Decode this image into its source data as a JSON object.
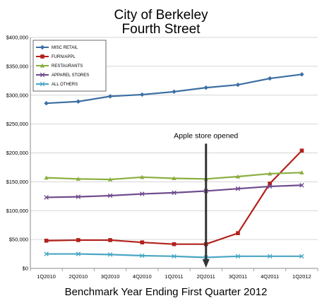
{
  "chart_data": {
    "type": "line",
    "title": "City of Berkeley",
    "subtitle": "Fourth Street",
    "xlabel": "Benchmark Year Ending First Quarter 2012",
    "ylabel": "",
    "categories": [
      "1Q2010",
      "2Q2010",
      "3Q2010",
      "4Q2010",
      "1Q2011",
      "2Q2011",
      "3Q2011",
      "4Q2011",
      "1Q2012"
    ],
    "ylim": [
      0,
      400000
    ],
    "yticks": [
      0,
      50000,
      100000,
      150000,
      200000,
      250000,
      300000,
      350000,
      400000
    ],
    "ytick_labels": [
      "$0",
      "$50,000",
      "$100,000",
      "$150,000",
      "$200,000",
      "$250,000",
      "$300,000",
      "$350,000",
      "$400,000"
    ],
    "grid": "horizontal",
    "legend_position": "top-left",
    "series": [
      {
        "name": "MISC RETAIL",
        "color": "#3b6fa3",
        "marker": "diamond",
        "values": [
          286000,
          289000,
          298000,
          301000,
          306000,
          313000,
          318000,
          329000,
          336000
        ]
      },
      {
        "name": "FURN/APPL",
        "color": "#b3211b",
        "marker": "square",
        "values": [
          48000,
          49000,
          49000,
          45000,
          42000,
          42000,
          61000,
          147000,
          204000
        ]
      },
      {
        "name": "RESTAURANTS",
        "color": "#8aae3f",
        "marker": "triangle",
        "values": [
          157000,
          155000,
          154000,
          158000,
          156000,
          155000,
          159000,
          164000,
          166000
        ]
      },
      {
        "name": "APPAREL STORES",
        "color": "#6e4a8c",
        "marker": "x",
        "values": [
          123000,
          124000,
          126000,
          129000,
          131000,
          134000,
          138000,
          142000,
          144000
        ]
      },
      {
        "name": "ALL OTHERS",
        "color": "#4aa6c4",
        "marker": "x",
        "values": [
          25000,
          25000,
          24000,
          22000,
          21000,
          19000,
          21000,
          21000,
          21000
        ]
      }
    ],
    "annotations": [
      {
        "text": "Apple store opened",
        "x": "2Q2011",
        "arrow_from": 210000,
        "arrow_to": 0
      }
    ]
  }
}
